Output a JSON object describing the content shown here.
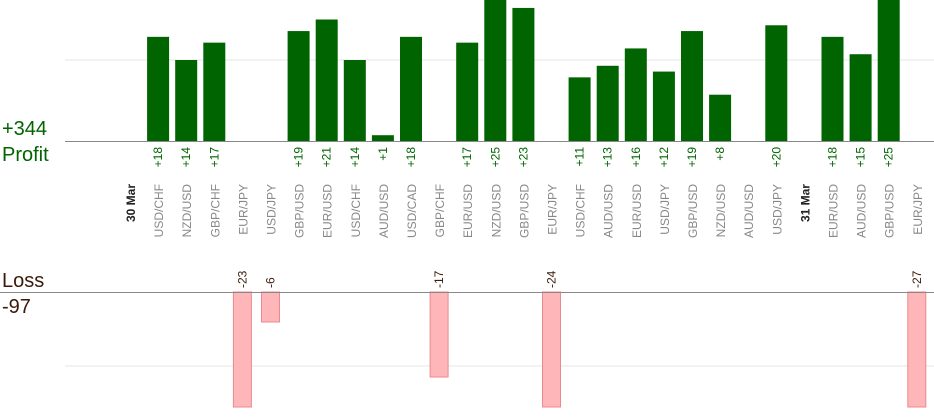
{
  "summary": {
    "profit_total": "+344",
    "profit_label": "Profit",
    "loss_label": "Loss",
    "loss_total": "-97"
  },
  "colors": {
    "profit_bar": "#006400",
    "loss_bar": "#ffb6b9",
    "profit_text": "#006400",
    "loss_text": "#3a1a0a",
    "axis": "#888888",
    "grid": "#e6e6e6",
    "tick_text": "#888888",
    "date_text": "#222222"
  },
  "chart_data": {
    "type": "bar",
    "categories": [
      "30 Mar",
      "USD/CHF",
      "NZD/USD",
      "GBP/CHF",
      "EUR/JPY",
      "USD/JPY",
      "GBP/USD",
      "EUR/USD",
      "USD/CHF",
      "AUD/USD",
      "USD/CAD",
      "GBP/CHF",
      "EUR/USD",
      "NZD/USD",
      "GBP/USD",
      "EUR/JPY",
      "USD/CHF",
      "AUD/USD",
      "EUR/USD",
      "USD/JPY",
      "GBP/USD",
      "NZD/USD",
      "AUD/USD",
      "USD/JPY",
      "31 Mar",
      "EUR/USD",
      "AUD/USD",
      "GBP/USD",
      "EUR/JPY"
    ],
    "date_markers": [
      "30 Mar",
      "31 Mar"
    ],
    "values": [
      null,
      18,
      14,
      17,
      -23,
      -6,
      19,
      21,
      14,
      1,
      18,
      -17,
      17,
      25,
      23,
      -24,
      11,
      13,
      16,
      12,
      19,
      8,
      null,
      20,
      null,
      18,
      15,
      25,
      -27
    ],
    "value_labels": [
      "",
      "+18",
      "+14",
      "+17",
      "-23",
      "-6",
      "+19",
      "+21",
      "+14",
      "+1",
      "+18",
      "-17",
      "+17",
      "+25",
      "+23",
      "-24",
      "+11",
      "+13",
      "+16",
      "+12",
      "+19",
      "+8",
      "",
      "+20",
      "",
      "+18",
      "+15",
      "+25",
      "-27"
    ],
    "series": [
      {
        "values": [
          null,
          18,
          14,
          17,
          null,
          null,
          19,
          21,
          14,
          1,
          18,
          null,
          17,
          25,
          23,
          null,
          11,
          13,
          16,
          12,
          19,
          8,
          null,
          20,
          null,
          18,
          15,
          25,
          null
        ]
      },
      {
        "values": [
          null,
          null,
          null,
          null,
          -23,
          -6,
          null,
          null,
          null,
          null,
          null,
          -17,
          null,
          null,
          null,
          -24,
          null,
          null,
          null,
          null,
          null,
          null,
          null,
          null,
          null,
          null,
          null,
          null,
          -27
        ]
      }
    ],
    "profit_axis_max": 19,
    "loss_axis_max": 12,
    "grid": true
  }
}
